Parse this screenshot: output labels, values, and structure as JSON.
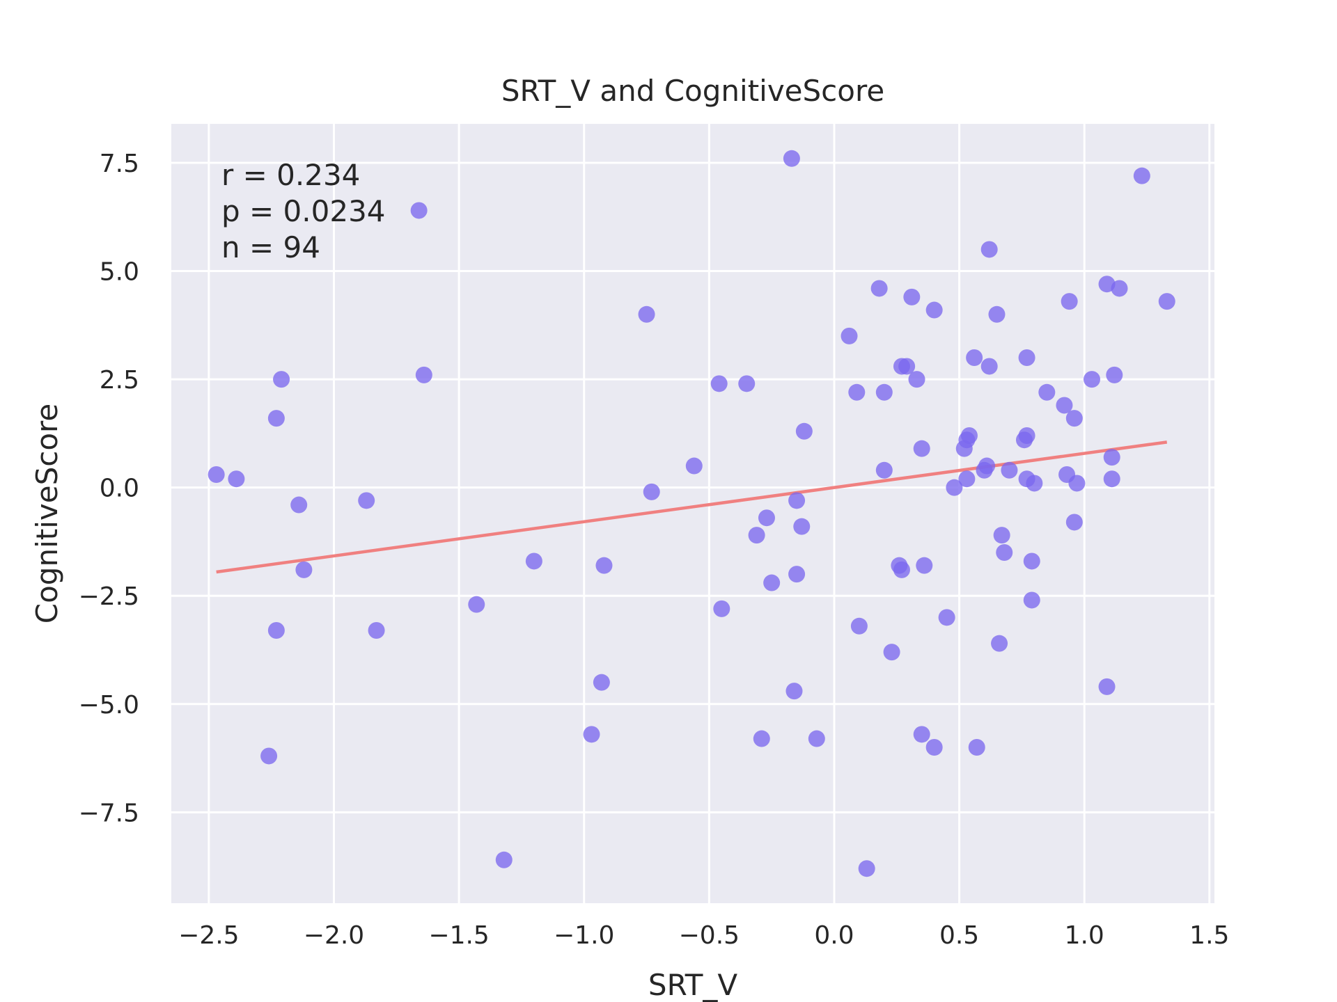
{
  "chart_data": {
    "type": "scatter",
    "title": "SRT_V and CognitiveScore",
    "xlabel": "SRT_V",
    "ylabel": "CognitiveScore",
    "xlim": [
      -2.65,
      1.52
    ],
    "ylim": [
      -9.6,
      8.4
    ],
    "xticks": [
      -2.5,
      -2.0,
      -1.5,
      -1.0,
      -0.5,
      0.0,
      0.5,
      1.0,
      1.5
    ],
    "xtick_labels": [
      "−2.5",
      "−2.0",
      "−1.5",
      "−1.0",
      "−0.5",
      "0.0",
      "0.5",
      "1.0",
      "1.5"
    ],
    "yticks": [
      7.5,
      5.0,
      2.5,
      0.0,
      -2.5,
      -5.0,
      -7.5
    ],
    "ytick_labels": [
      "7.5",
      "5.0",
      "2.5",
      "0.0",
      "−2.5",
      "−5.0",
      "−7.5"
    ],
    "grid": true,
    "annotations": [
      "r = 0.234",
      "p = 0.0234",
      "n = 94"
    ],
    "colors": {
      "points": "#7b68ee",
      "fit_line": "#f08080",
      "background": "#eaeaf2",
      "grid": "#ffffff"
    },
    "fit_line": {
      "x": [
        -2.47,
        1.33
      ],
      "y": [
        -1.95,
        1.05
      ]
    },
    "points": [
      {
        "x": -2.47,
        "y": 0.3
      },
      {
        "x": -2.39,
        "y": 0.2
      },
      {
        "x": -2.26,
        "y": -6.2
      },
      {
        "x": -2.23,
        "y": 1.6
      },
      {
        "x": -2.23,
        "y": -3.3
      },
      {
        "x": -2.21,
        "y": 2.5
      },
      {
        "x": -2.14,
        "y": -0.4
      },
      {
        "x": -2.12,
        "y": -1.9
      },
      {
        "x": -1.87,
        "y": -0.3
      },
      {
        "x": -1.83,
        "y": -3.3
      },
      {
        "x": -1.66,
        "y": 6.4
      },
      {
        "x": -1.64,
        "y": 2.6
      },
      {
        "x": -1.43,
        "y": -2.7
      },
      {
        "x": -1.32,
        "y": -8.6
      },
      {
        "x": -1.2,
        "y": -1.7
      },
      {
        "x": -0.97,
        "y": -5.7
      },
      {
        "x": -0.93,
        "y": -4.5
      },
      {
        "x": -0.92,
        "y": -1.8
      },
      {
        "x": -0.75,
        "y": 4.0
      },
      {
        "x": -0.73,
        "y": -0.1
      },
      {
        "x": -0.56,
        "y": 0.5
      },
      {
        "x": -0.46,
        "y": 2.4
      },
      {
        "x": -0.45,
        "y": -2.8
      },
      {
        "x": -0.35,
        "y": 2.4
      },
      {
        "x": -0.31,
        "y": -1.1
      },
      {
        "x": -0.29,
        "y": -5.8
      },
      {
        "x": -0.27,
        "y": -0.7
      },
      {
        "x": -0.25,
        "y": -2.2
      },
      {
        "x": -0.17,
        "y": 7.6
      },
      {
        "x": -0.16,
        "y": -4.7
      },
      {
        "x": -0.15,
        "y": -0.3
      },
      {
        "x": -0.15,
        "y": -2.0
      },
      {
        "x": -0.13,
        "y": -0.9
      },
      {
        "x": -0.12,
        "y": 1.3
      },
      {
        "x": -0.07,
        "y": -5.8
      },
      {
        "x": 0.06,
        "y": 3.5
      },
      {
        "x": 0.09,
        "y": 2.2
      },
      {
        "x": 0.1,
        "y": -3.2
      },
      {
        "x": 0.13,
        "y": -8.8
      },
      {
        "x": 0.18,
        "y": 4.6
      },
      {
        "x": 0.2,
        "y": 2.2
      },
      {
        "x": 0.2,
        "y": 0.4
      },
      {
        "x": 0.23,
        "y": -3.8
      },
      {
        "x": 0.26,
        "y": -1.8
      },
      {
        "x": 0.27,
        "y": 2.8
      },
      {
        "x": 0.27,
        "y": -1.9
      },
      {
        "x": 0.29,
        "y": 2.8
      },
      {
        "x": 0.31,
        "y": 4.4
      },
      {
        "x": 0.33,
        "y": 2.5
      },
      {
        "x": 0.35,
        "y": 0.9
      },
      {
        "x": 0.35,
        "y": -5.7
      },
      {
        "x": 0.36,
        "y": -1.8
      },
      {
        "x": 0.4,
        "y": 4.1
      },
      {
        "x": 0.4,
        "y": -6.0
      },
      {
        "x": 0.45,
        "y": -3.0
      },
      {
        "x": 0.48,
        "y": 0.0
      },
      {
        "x": 0.52,
        "y": 0.9
      },
      {
        "x": 0.53,
        "y": 1.1
      },
      {
        "x": 0.53,
        "y": 0.2
      },
      {
        "x": 0.54,
        "y": 1.2
      },
      {
        "x": 0.56,
        "y": 3.0
      },
      {
        "x": 0.57,
        "y": -6.0
      },
      {
        "x": 0.6,
        "y": 0.4
      },
      {
        "x": 0.61,
        "y": 0.5
      },
      {
        "x": 0.62,
        "y": 5.5
      },
      {
        "x": 0.62,
        "y": 2.8
      },
      {
        "x": 0.65,
        "y": 4.0
      },
      {
        "x": 0.66,
        "y": -3.6
      },
      {
        "x": 0.67,
        "y": -1.1
      },
      {
        "x": 0.68,
        "y": -1.5
      },
      {
        "x": 0.7,
        "y": 0.4
      },
      {
        "x": 0.76,
        "y": 1.1
      },
      {
        "x": 0.77,
        "y": 1.2
      },
      {
        "x": 0.77,
        "y": 3.0
      },
      {
        "x": 0.77,
        "y": 0.2
      },
      {
        "x": 0.79,
        "y": -2.6
      },
      {
        "x": 0.79,
        "y": -1.7
      },
      {
        "x": 0.8,
        "y": 0.1
      },
      {
        "x": 0.85,
        "y": 2.2
      },
      {
        "x": 0.92,
        "y": 1.9
      },
      {
        "x": 0.93,
        "y": 0.3
      },
      {
        "x": 0.94,
        "y": 4.3
      },
      {
        "x": 0.96,
        "y": 1.6
      },
      {
        "x": 0.96,
        "y": -0.8
      },
      {
        "x": 0.97,
        "y": 0.1
      },
      {
        "x": 1.03,
        "y": 2.5
      },
      {
        "x": 1.09,
        "y": 4.7
      },
      {
        "x": 1.09,
        "y": -4.6
      },
      {
        "x": 1.11,
        "y": 0.7
      },
      {
        "x": 1.11,
        "y": 0.2
      },
      {
        "x": 1.12,
        "y": 2.6
      },
      {
        "x": 1.14,
        "y": 4.6
      },
      {
        "x": 1.23,
        "y": 7.2
      },
      {
        "x": 1.33,
        "y": 4.3
      }
    ]
  }
}
